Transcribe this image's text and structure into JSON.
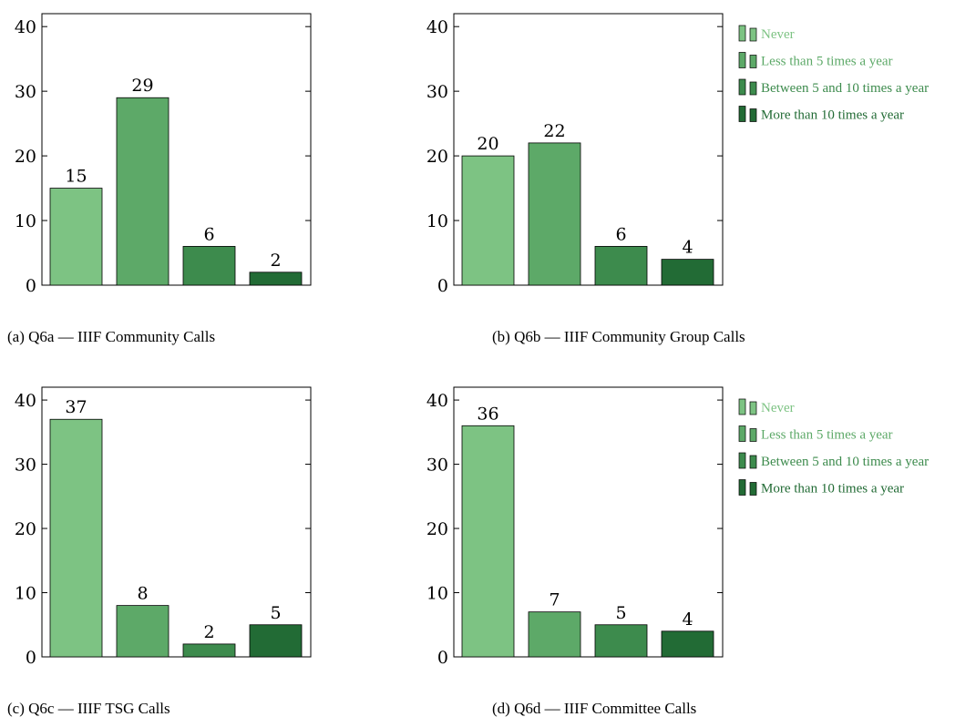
{
  "legend_entries": [
    "Never",
    "Less than 5 times a year",
    "Between 5 and 10 times a year",
    "More than 10 times a year"
  ],
  "colors": [
    "#7dc383",
    "#5da968",
    "#3d8b4d",
    "#226b35"
  ],
  "legend_text_colors": [
    "#7dc383",
    "#5da968",
    "#3d8b4d",
    "#226b35"
  ],
  "chart_data": [
    {
      "type": "bar",
      "caption": "(a) Q6a — IIIF Community Calls",
      "categories": [
        "Never",
        "Less than 5 times a year",
        "Between 5 and 10 times a year",
        "More than 10 times a year"
      ],
      "values": [
        15,
        29,
        6,
        2
      ],
      "ylim": [
        0,
        42
      ],
      "yticks": [
        0,
        10,
        20,
        30,
        40
      ],
      "legend": false
    },
    {
      "type": "bar",
      "caption": "(b) Q6b — IIIF Community Group Calls",
      "categories": [
        "Never",
        "Less than 5 times a year",
        "Between 5 and 10 times a year",
        "More than 10 times a year"
      ],
      "values": [
        20,
        22,
        6,
        4
      ],
      "ylim": [
        0,
        42
      ],
      "yticks": [
        0,
        10,
        20,
        30,
        40
      ],
      "legend": true
    },
    {
      "type": "bar",
      "caption": "(c) Q6c — IIIF TSG Calls",
      "categories": [
        "Never",
        "Less than 5 times a year",
        "Between 5 and 10 times a year",
        "More than 10 times a year"
      ],
      "values": [
        37,
        8,
        2,
        5
      ],
      "ylim": [
        0,
        42
      ],
      "yticks": [
        0,
        10,
        20,
        30,
        40
      ],
      "legend": false
    },
    {
      "type": "bar",
      "caption": "(d) Q6d — IIIF Committee Calls",
      "categories": [
        "Never",
        "Less than 5 times a year",
        "Between 5 and 10 times a year",
        "More than 10 times a year"
      ],
      "values": [
        36,
        7,
        5,
        4
      ],
      "ylim": [
        0,
        42
      ],
      "yticks": [
        0,
        10,
        20,
        30,
        40
      ],
      "legend": true
    }
  ]
}
